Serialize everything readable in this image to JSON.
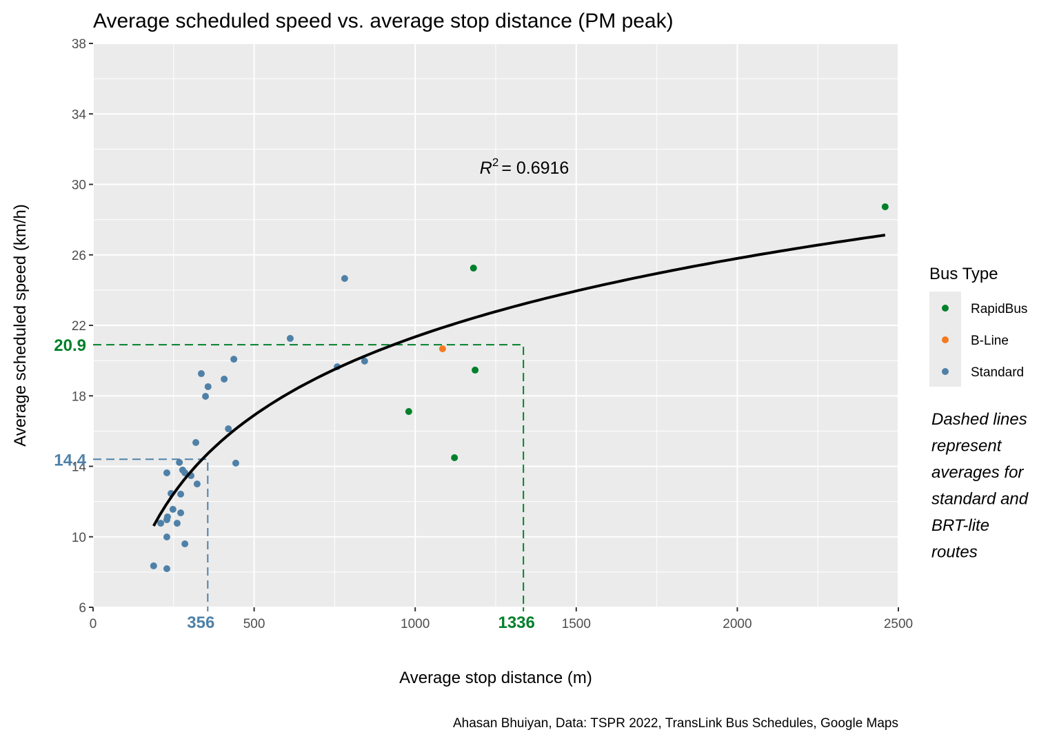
{
  "chart_data": {
    "type": "scatter",
    "title": "Average scheduled speed vs. average stop distance (PM peak)",
    "xlabel": "Average stop distance (m)",
    "ylabel": "Average scheduled speed (km/h)",
    "caption": "Ahasan Bhuiyan, Data: TSPR 2022, TransLink Bus Schedules, Google Maps",
    "xlim": [
      0,
      2500
    ],
    "ylim": [
      6,
      38
    ],
    "x_ticks": [
      0,
      500,
      1000,
      1500,
      2000,
      2500
    ],
    "y_ticks": [
      6,
      10,
      14,
      18,
      22,
      26,
      30,
      34,
      38
    ],
    "grid": true,
    "legend": {
      "title": "Bus Type",
      "placement": "right",
      "entries": [
        {
          "name": "RapidBus",
          "color": "#00802b"
        },
        {
          "name": "B-Line",
          "color": "#f47a20"
        },
        {
          "name": "Standard",
          "color": "#4f81a8"
        }
      ]
    },
    "note": [
      "Dashed lines",
      "represent",
      "averages for",
      "standard and",
      "BRT-lite",
      "routes"
    ],
    "annotation": {
      "r2_symbol": "R",
      "r2_exp": "2",
      "r2_text": "= 0.6916",
      "r2_value": 0.6916,
      "x": 1500,
      "y": 30.8
    },
    "fit": {
      "type": "log",
      "formula": "y = a + b*ln(x)",
      "a": -23.0,
      "b": 6.42,
      "x_range": [
        188,
        2459
      ]
    },
    "reference_lines": [
      {
        "group": "Standard",
        "x": 356,
        "y": 14.4,
        "x_label": "356",
        "y_label": "14.4",
        "color": "#4f81a8"
      },
      {
        "group": "RapidBus",
        "x": 1336,
        "y": 20.9,
        "x_label": "1336",
        "y_label": "20.9",
        "color": "#00802b"
      }
    ],
    "series": [
      {
        "name": "Standard",
        "color": "#4f81a8",
        "points": [
          [
            188,
            8.35
          ],
          [
            229,
            8.19
          ],
          [
            285,
            9.6
          ],
          [
            229,
            9.99
          ],
          [
            210,
            10.77
          ],
          [
            229,
            10.97
          ],
          [
            231,
            11.13
          ],
          [
            261,
            10.77
          ],
          [
            272,
            11.36
          ],
          [
            248,
            11.56
          ],
          [
            242,
            12.46
          ],
          [
            272,
            12.42
          ],
          [
            323,
            13.0
          ],
          [
            229,
            13.63
          ],
          [
            304,
            13.47
          ],
          [
            285,
            13.63
          ],
          [
            278,
            13.79
          ],
          [
            268,
            14.22
          ],
          [
            319,
            15.35
          ],
          [
            443,
            14.18
          ],
          [
            420,
            16.13
          ],
          [
            349,
            17.97
          ],
          [
            357,
            18.52
          ],
          [
            336,
            19.26
          ],
          [
            407,
            18.95
          ],
          [
            437,
            20.08
          ],
          [
            612,
            21.26
          ],
          [
            758,
            19.65
          ],
          [
            843,
            19.97
          ],
          [
            781,
            24.66
          ]
        ]
      },
      {
        "name": "B-Line",
        "color": "#f47a20",
        "points": [
          [
            1085,
            20.67
          ]
        ]
      },
      {
        "name": "RapidBus",
        "color": "#00802b",
        "points": [
          [
            1181,
            25.25
          ],
          [
            1186,
            19.46
          ],
          [
            980,
            17.11
          ],
          [
            1122,
            14.49
          ],
          [
            2459,
            28.73
          ]
        ]
      }
    ]
  }
}
